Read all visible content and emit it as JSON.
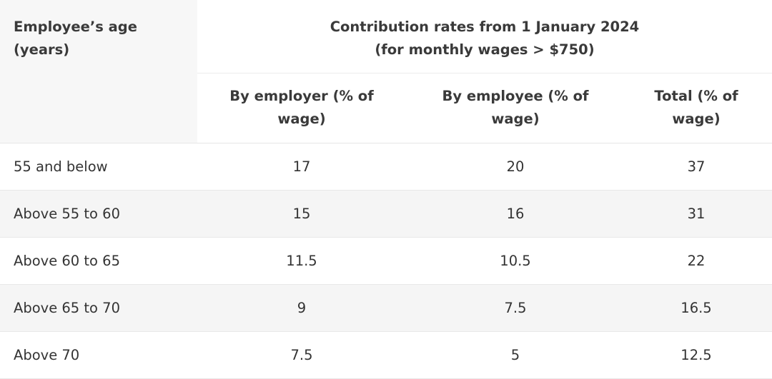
{
  "header": {
    "age_line1": "Employee’s age",
    "age_line2": "(years)",
    "group_line1": "Contribution rates from 1 January 2024",
    "group_line2": "(for monthly wages > $750)",
    "columns": [
      {
        "line1": "By employer (% of",
        "line2": "wage)"
      },
      {
        "line1": "By employee (% of",
        "line2": "wage)"
      },
      {
        "line1": "Total (% of",
        "line2": "wage)"
      }
    ]
  },
  "rows": [
    {
      "age": "55 and below",
      "employer": "17",
      "employee": "20",
      "total": "37"
    },
    {
      "age": "Above 55 to 60",
      "employer": "15",
      "employee": "16",
      "total": "31"
    },
    {
      "age": "Above 60 to 65",
      "employer": "11.5",
      "employee": "10.5",
      "total": "22"
    },
    {
      "age": "Above 65 to 70",
      "employer": "9",
      "employee": "7.5",
      "total": "16.5"
    },
    {
      "age": "Above 70",
      "employer": "7.5",
      "employee": "5",
      "total": "12.5"
    }
  ]
}
